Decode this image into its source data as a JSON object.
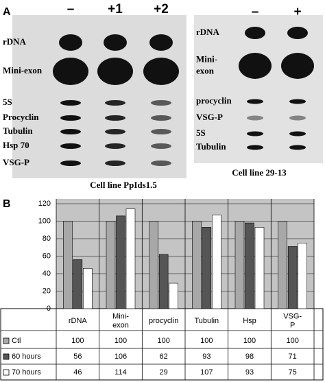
{
  "panel_a": {
    "label": "A",
    "left_blot": {
      "columns": [
        "–",
        "+1",
        "+2"
      ],
      "rows": [
        "rDNA",
        "Mini-exon",
        "5S",
        "Procyclin",
        "Tubulin",
        "Hsp 70",
        "VSG-P"
      ],
      "caption": "Cell line PpIds1.5"
    },
    "right_blot": {
      "columns": [
        "–",
        "+"
      ],
      "rows": [
        "rDNA",
        "Mini-exon",
        "procyclin",
        "VSG-P",
        "5S",
        "Tubulin"
      ],
      "caption": "Cell line 29-13"
    }
  },
  "panel_b": {
    "label": "B"
  },
  "chart_data": {
    "type": "bar",
    "categories": [
      "rDNA",
      "Mini-exon",
      "procyclin",
      "Tubulin",
      "Hsp",
      "VSG-P"
    ],
    "series": [
      {
        "name": "Ctl",
        "color": "#a8a8a8",
        "values": [
          100,
          100,
          100,
          100,
          100,
          100
        ]
      },
      {
        "name": "60 hours",
        "color": "#555555",
        "values": [
          56,
          106,
          62,
          93,
          98,
          71
        ]
      },
      {
        "name": "70 hours",
        "color": "#ffffff",
        "values": [
          46,
          114,
          29,
          107,
          93,
          75
        ]
      }
    ],
    "ylim": [
      0,
      120
    ],
    "yticks": [
      0,
      20,
      40,
      60,
      80,
      100,
      120
    ],
    "grid": true
  }
}
